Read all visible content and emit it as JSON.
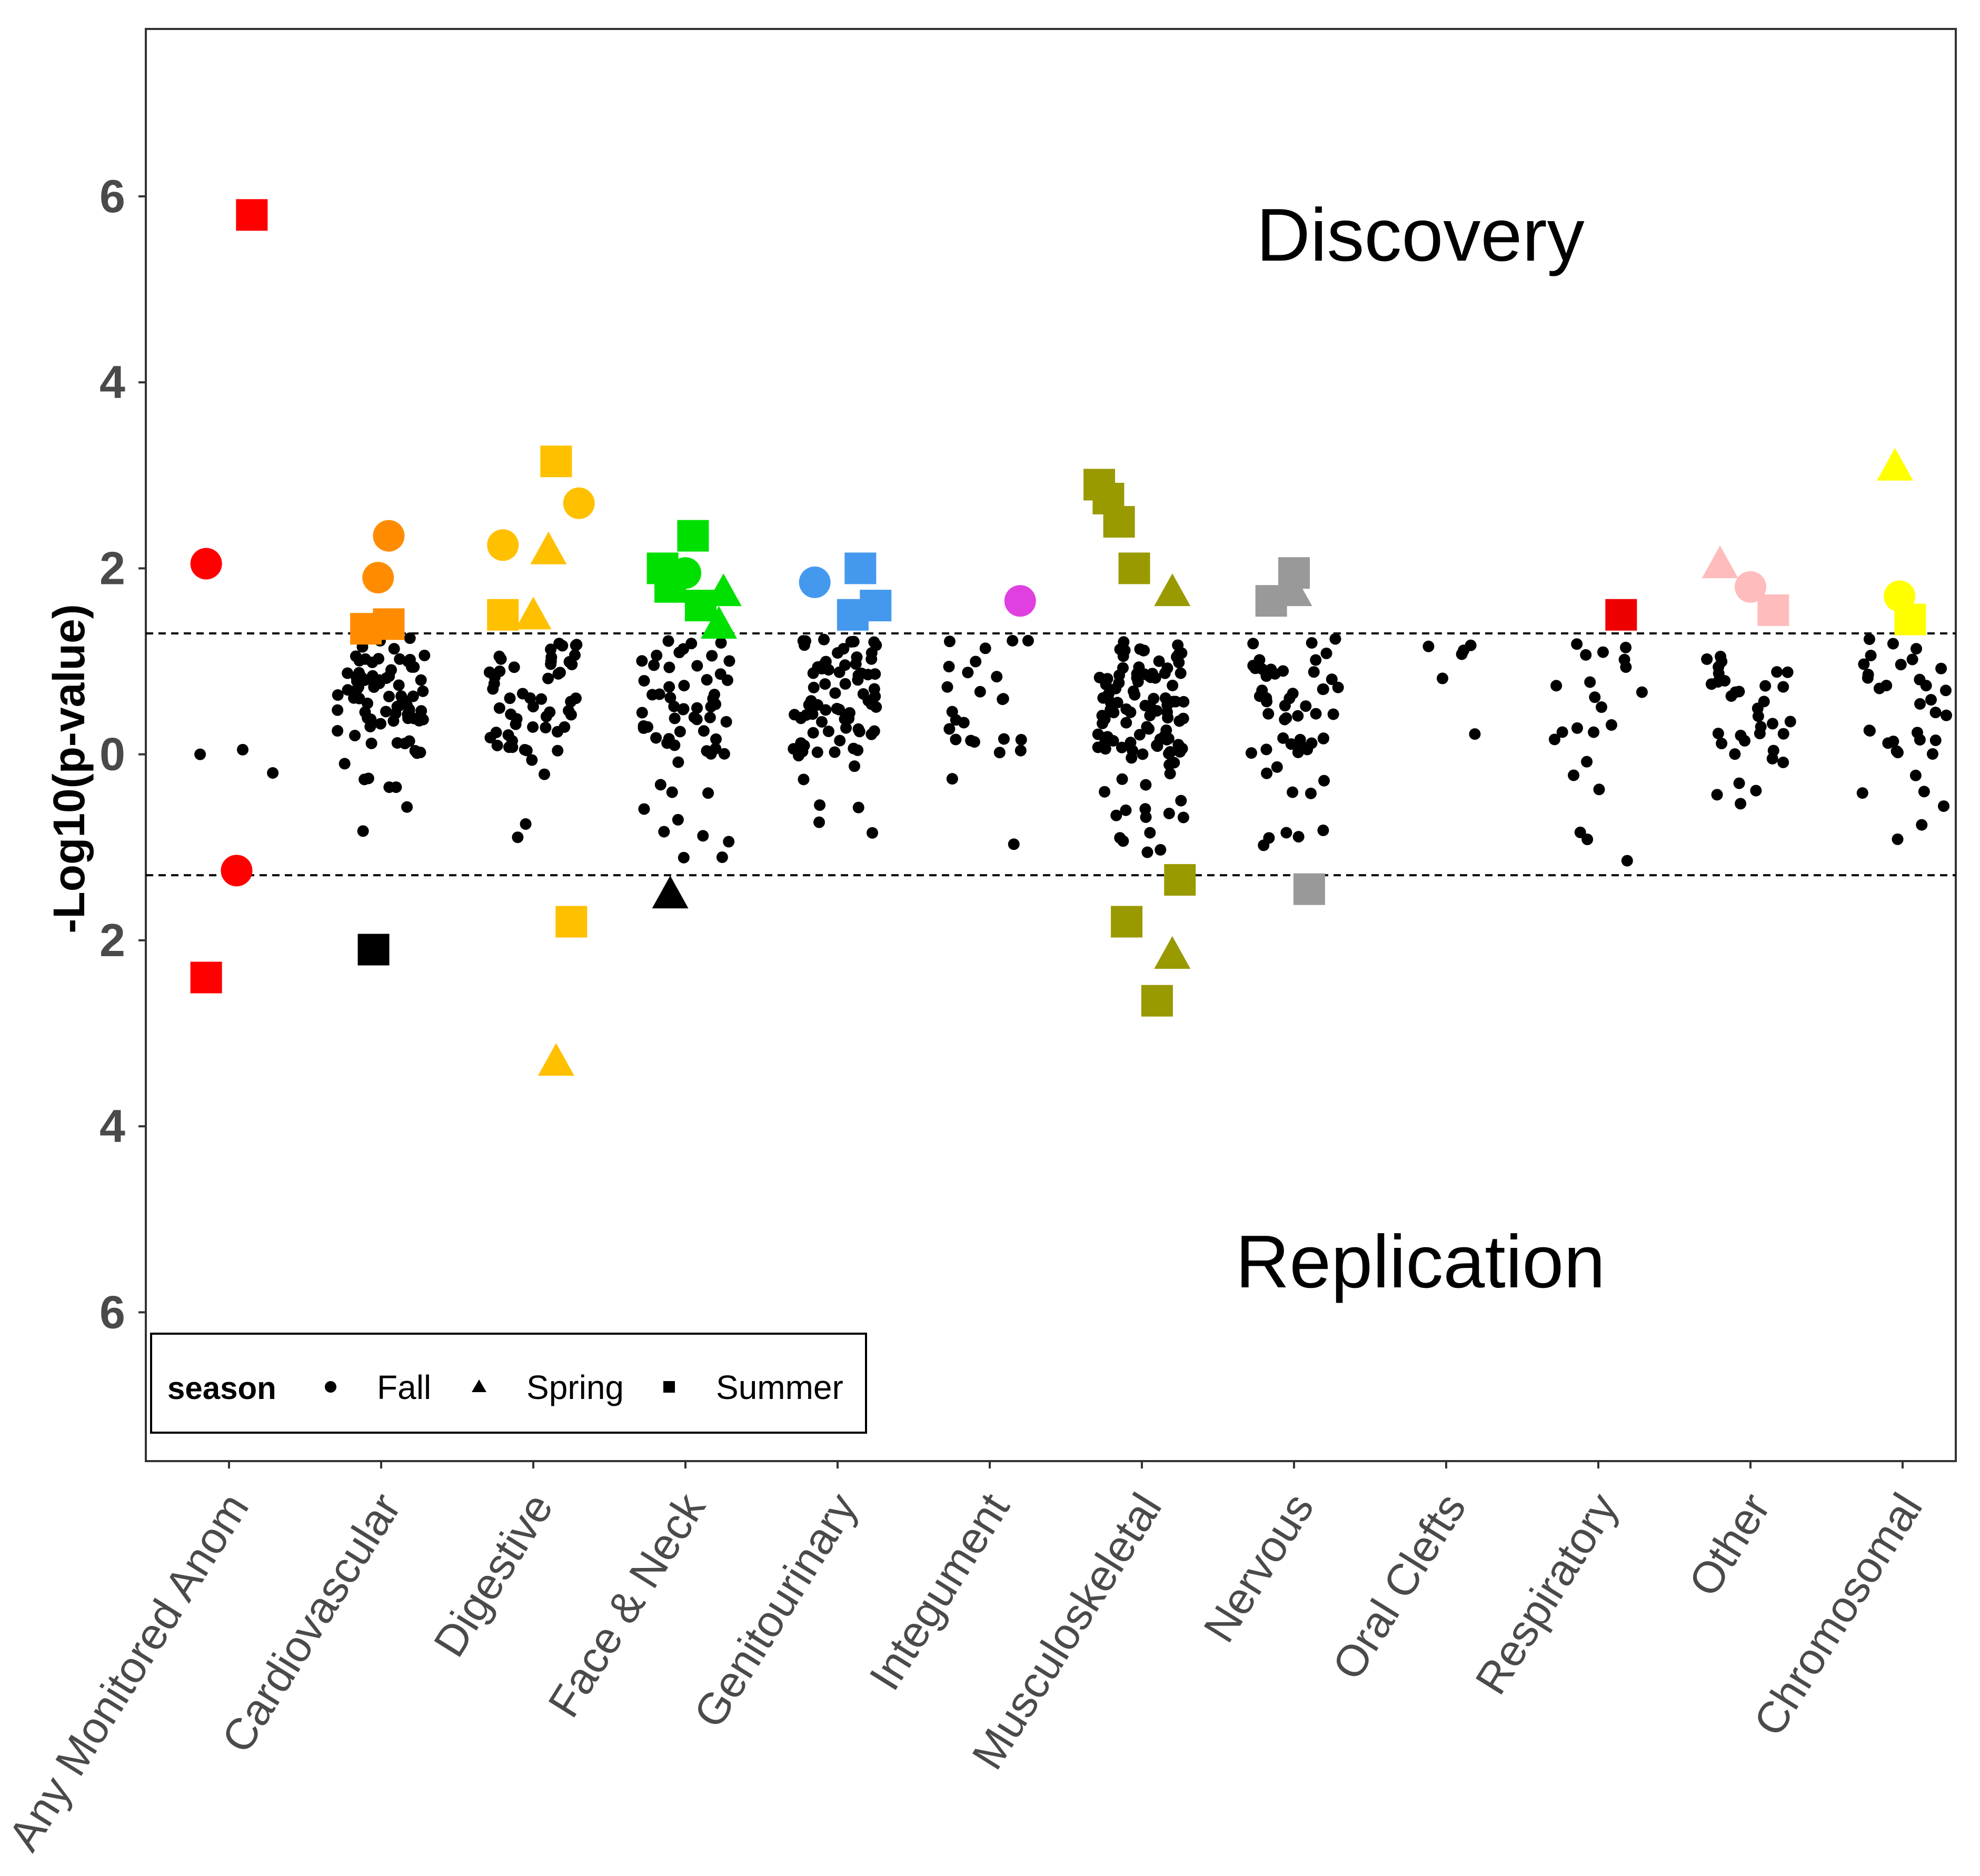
{
  "chart_data": {
    "type": "scatter",
    "ylabel": "-Log10(p-value)",
    "y_tick_labels": [
      "6",
      "4",
      "2",
      "0",
      "2",
      "4",
      "6"
    ],
    "y_tick_values": [
      6,
      4,
      2,
      0,
      -2,
      -4,
      -6
    ],
    "ylim": [
      -7.6,
      7.8
    ],
    "threshold_lines": [
      1.3,
      -1.3
    ],
    "categories": [
      "Any Monitored Anom",
      "Cardiovascular",
      "Digestive",
      "Face & Neck",
      "Genitourinary",
      "Integument",
      "Musculoskeletal",
      "Nervous",
      "Oral Clefts",
      "Respiratory",
      "Other",
      "Chromosomal"
    ],
    "category_colors": [
      "#ff0000",
      "#ff8c00",
      "#ffc000",
      "#00e000",
      "#4499ee",
      "#e040e0",
      "#999900",
      "#999999",
      "#000000",
      "#ee0000",
      "#ffbcbc",
      "#ffff00"
    ],
    "annotations": {
      "top": "Discovery",
      "bottom": "Replication"
    },
    "legend": {
      "title": "season",
      "entries": [
        {
          "label": "Fall",
          "shape": "circle"
        },
        {
          "label": "Spring",
          "shape": "triangle"
        },
        {
          "label": "Summer",
          "shape": "square"
        }
      ]
    },
    "significant_points": [
      {
        "category": 0,
        "dx": 0.15,
        "y": 5.8,
        "shape": "square"
      },
      {
        "category": 0,
        "dx": -0.15,
        "y": 2.05,
        "shape": "circle"
      },
      {
        "category": 0,
        "dx": 0.05,
        "y": -1.25,
        "shape": "circle"
      },
      {
        "category": 0,
        "dx": -0.15,
        "y": -2.4,
        "shape": "square"
      },
      {
        "category": 1,
        "dx": 0.05,
        "y": 2.35,
        "shape": "circle"
      },
      {
        "category": 1,
        "dx": -0.02,
        "y": 1.9,
        "shape": "circle"
      },
      {
        "category": 1,
        "dx": -0.1,
        "y": 1.35,
        "shape": "square"
      },
      {
        "category": 1,
        "dx": 0.05,
        "y": 1.4,
        "shape": "square"
      },
      {
        "category": 1,
        "dx": -0.05,
        "y": -2.1,
        "shape": "square",
        "color": "#000000"
      },
      {
        "category": 2,
        "dx": 0.15,
        "y": 3.15,
        "shape": "square"
      },
      {
        "category": 2,
        "dx": 0.3,
        "y": 2.7,
        "shape": "circle"
      },
      {
        "category": 2,
        "dx": -0.2,
        "y": 2.25,
        "shape": "circle"
      },
      {
        "category": 2,
        "dx": 0.1,
        "y": 2.2,
        "shape": "triangle"
      },
      {
        "category": 2,
        "dx": -0.2,
        "y": 1.5,
        "shape": "square"
      },
      {
        "category": 2,
        "dx": 0.0,
        "y": 1.5,
        "shape": "triangle"
      },
      {
        "category": 2,
        "dx": 0.25,
        "y": -1.8,
        "shape": "square"
      },
      {
        "category": 2,
        "dx": 0.15,
        "y": -3.3,
        "shape": "triangle"
      },
      {
        "category": 3,
        "dx": -0.15,
        "y": 2.0,
        "shape": "square"
      },
      {
        "category": 3,
        "dx": 0.05,
        "y": 2.35,
        "shape": "square"
      },
      {
        "category": 3,
        "dx": -0.1,
        "y": 1.8,
        "shape": "square"
      },
      {
        "category": 3,
        "dx": 0.0,
        "y": 1.95,
        "shape": "circle"
      },
      {
        "category": 3,
        "dx": 0.1,
        "y": 1.6,
        "shape": "square"
      },
      {
        "category": 3,
        "dx": 0.25,
        "y": 1.75,
        "shape": "triangle"
      },
      {
        "category": 3,
        "dx": 0.22,
        "y": 1.4,
        "shape": "triangle"
      },
      {
        "category": 3,
        "dx": -0.1,
        "y": -1.5,
        "shape": "triangle",
        "color": "#000000"
      },
      {
        "category": 4,
        "dx": -0.15,
        "y": 1.85,
        "shape": "circle"
      },
      {
        "category": 4,
        "dx": 0.15,
        "y": 2.0,
        "shape": "square"
      },
      {
        "category": 4,
        "dx": 0.1,
        "y": 1.5,
        "shape": "square"
      },
      {
        "category": 4,
        "dx": 0.25,
        "y": 1.6,
        "shape": "square"
      },
      {
        "category": 5,
        "dx": 0.2,
        "y": 1.65,
        "shape": "circle"
      },
      {
        "category": 6,
        "dx": -0.28,
        "y": 2.9,
        "shape": "square"
      },
      {
        "category": 6,
        "dx": -0.22,
        "y": 2.75,
        "shape": "square"
      },
      {
        "category": 6,
        "dx": -0.15,
        "y": 2.5,
        "shape": "square"
      },
      {
        "category": 6,
        "dx": -0.05,
        "y": 2.0,
        "shape": "square"
      },
      {
        "category": 6,
        "dx": 0.2,
        "y": 1.75,
        "shape": "triangle"
      },
      {
        "category": 6,
        "dx": 0.25,
        "y": -1.35,
        "shape": "square"
      },
      {
        "category": 6,
        "dx": -0.1,
        "y": -1.8,
        "shape": "square"
      },
      {
        "category": 6,
        "dx": 0.2,
        "y": -2.15,
        "shape": "triangle"
      },
      {
        "category": 6,
        "dx": 0.1,
        "y": -2.65,
        "shape": "square"
      },
      {
        "category": 7,
        "dx": -0.15,
        "y": 1.65,
        "shape": "square"
      },
      {
        "category": 7,
        "dx": 0.0,
        "y": 1.95,
        "shape": "square"
      },
      {
        "category": 7,
        "dx": 0.0,
        "y": 1.75,
        "shape": "triangle"
      },
      {
        "category": 7,
        "dx": 0.1,
        "y": -1.45,
        "shape": "square"
      },
      {
        "category": 9,
        "dx": 0.15,
        "y": 1.5,
        "shape": "square"
      },
      {
        "category": 10,
        "dx": -0.2,
        "y": 2.05,
        "shape": "triangle"
      },
      {
        "category": 10,
        "dx": 0.0,
        "y": 1.8,
        "shape": "circle"
      },
      {
        "category": 10,
        "dx": 0.15,
        "y": 1.55,
        "shape": "square"
      },
      {
        "category": 11,
        "dx": -0.05,
        "y": 3.1,
        "shape": "triangle"
      },
      {
        "category": 11,
        "dx": -0.02,
        "y": 1.7,
        "shape": "circle"
      },
      {
        "category": 11,
        "dx": 0.05,
        "y": 1.45,
        "shape": "square"
      }
    ]
  }
}
